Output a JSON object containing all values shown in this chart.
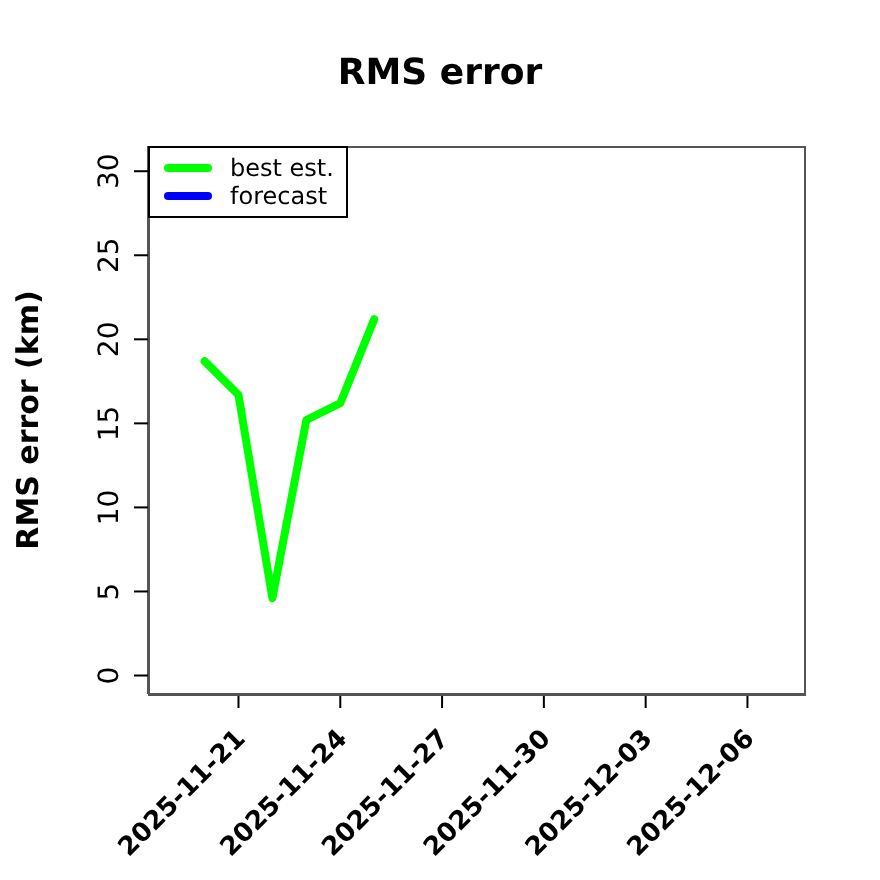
{
  "chart_data": {
    "type": "line",
    "title": "RMS error",
    "ylabel": "RMS error (km)",
    "x": [
      "2025-11-20",
      "2025-11-21",
      "2025-11-22",
      "2025-11-23",
      "2025-11-24",
      "2025-11-25"
    ],
    "series": [
      {
        "name": "best est.",
        "color": "#00ff00",
        "values": [
          18.7,
          16.7,
          4.6,
          15.2,
          16.2,
          21.2
        ]
      },
      {
        "name": "forecast",
        "color": "#0000ff",
        "values": [
          null,
          null,
          null,
          null,
          null,
          null
        ]
      }
    ],
    "xlim": [
      "2025-11-18T08:00",
      "2025-12-07T16:00"
    ],
    "xticks": [
      "2025-11-21",
      "2025-11-24",
      "2025-11-27",
      "2025-11-30",
      "2025-12-03",
      "2025-12-06"
    ],
    "ylim": [
      -1.1,
      31.5
    ],
    "yticks": [
      0,
      5,
      10,
      15,
      20,
      25,
      30
    ],
    "legend": "top left",
    "marker": "none",
    "line_style": "solid"
  }
}
